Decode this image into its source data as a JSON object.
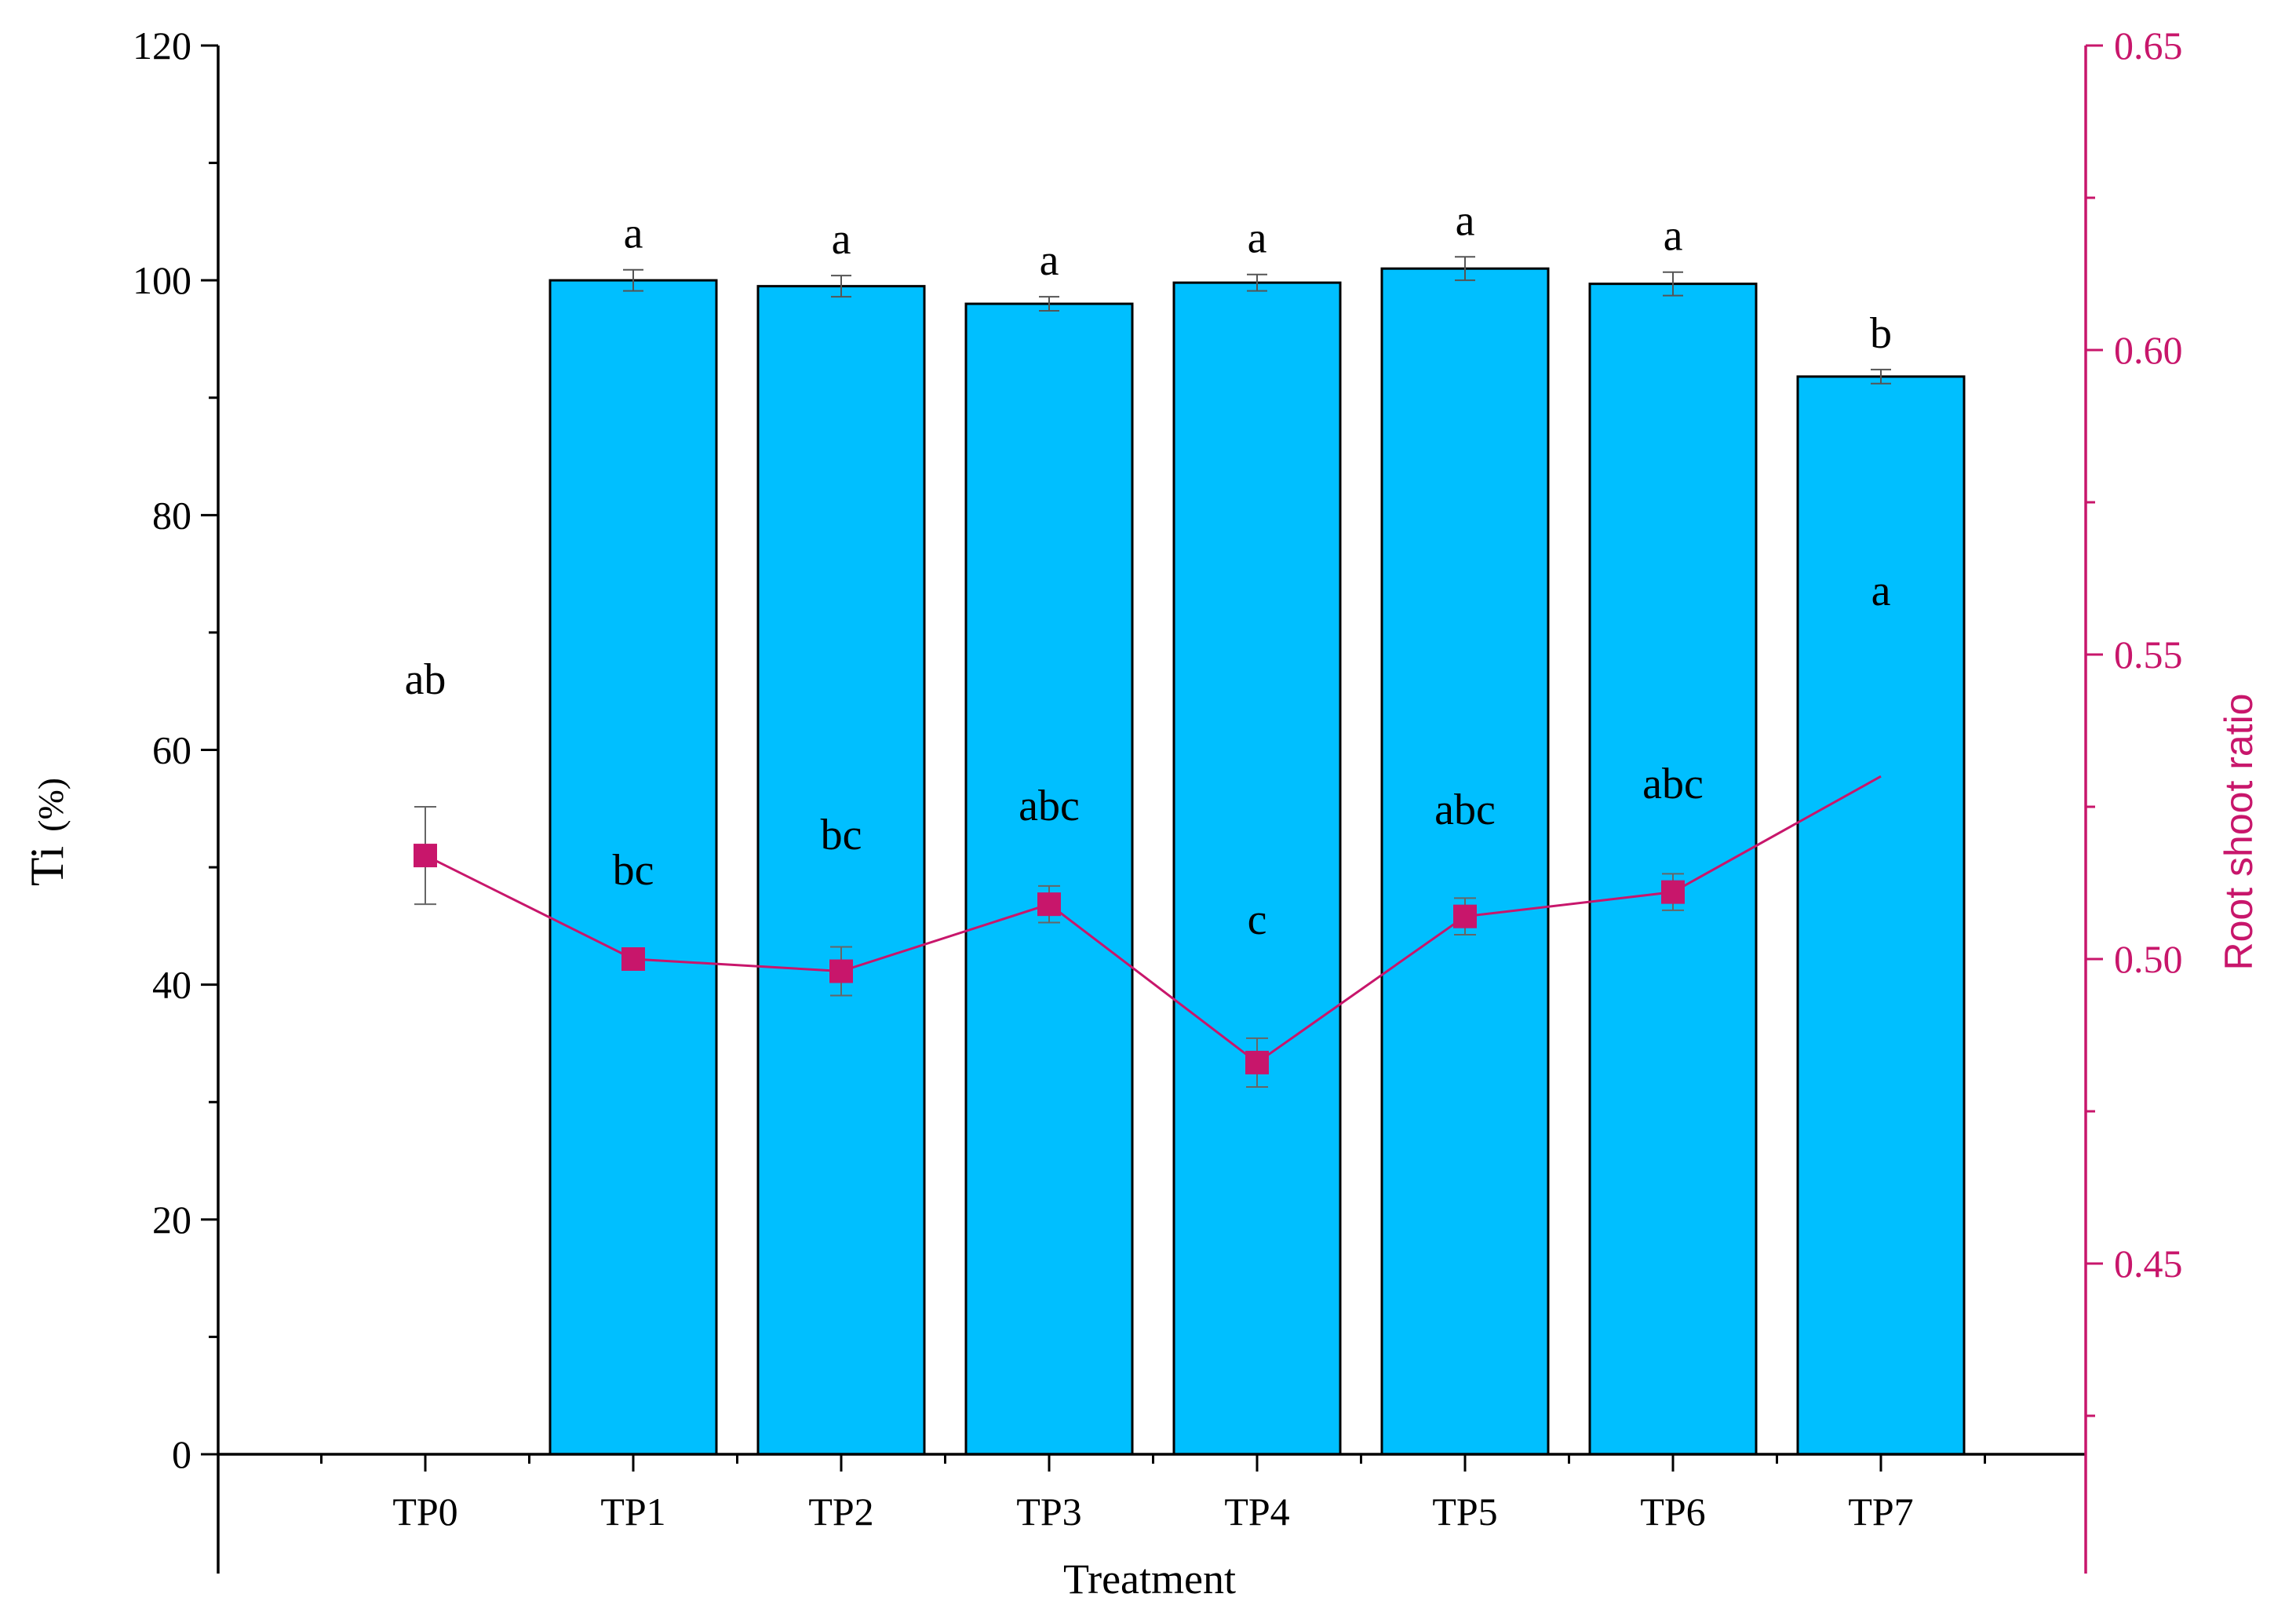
{
  "chart_data": {
    "type": "bar",
    "categories": [
      "TP0",
      "TP1",
      "TP2",
      "TP3",
      "TP4",
      "TP5",
      "TP6",
      "TP7"
    ],
    "xlabel": "Treatment",
    "ylabel": "Ti  (%)",
    "ylabel_main": "Ti",
    "ylabel_unit": "(%)",
    "y2label": "Root shoot ratio",
    "ylim": [
      0,
      120
    ],
    "y2lim": [
      0.45,
      0.65
    ],
    "y_ticks": [
      "0",
      "20",
      "40",
      "60",
      "80",
      "100",
      "120"
    ],
    "y2_ticks": [
      "0.45",
      "0.50",
      "0.55",
      "0.60",
      "0.65"
    ],
    "series": [
      {
        "type": "bar",
        "axis": "left",
        "values": [
          null,
          100.0,
          99.5,
          98.0,
          99.8,
          101.0,
          99.7,
          91.8
        ],
        "errors": [
          null,
          0.9,
          0.9,
          0.6,
          0.7,
          1.0,
          1.0,
          0.6
        ],
        "labels": [
          "",
          "a",
          "a",
          "a",
          "a",
          "a",
          "a",
          "b"
        ],
        "color": "#00bfff"
      },
      {
        "type": "line",
        "axis": "right",
        "values": [
          0.517,
          0.5,
          0.498,
          0.509,
          0.483,
          0.507,
          0.511,
          0.53
        ],
        "errors": [
          0.008,
          0.0,
          0.004,
          0.003,
          0.004,
          0.003,
          0.003,
          0.0
        ],
        "labels": [
          "ab",
          "bc",
          "bc",
          "abc",
          "c",
          "abc",
          "abc",
          "a"
        ],
        "color": "#c8166b"
      }
    ]
  }
}
